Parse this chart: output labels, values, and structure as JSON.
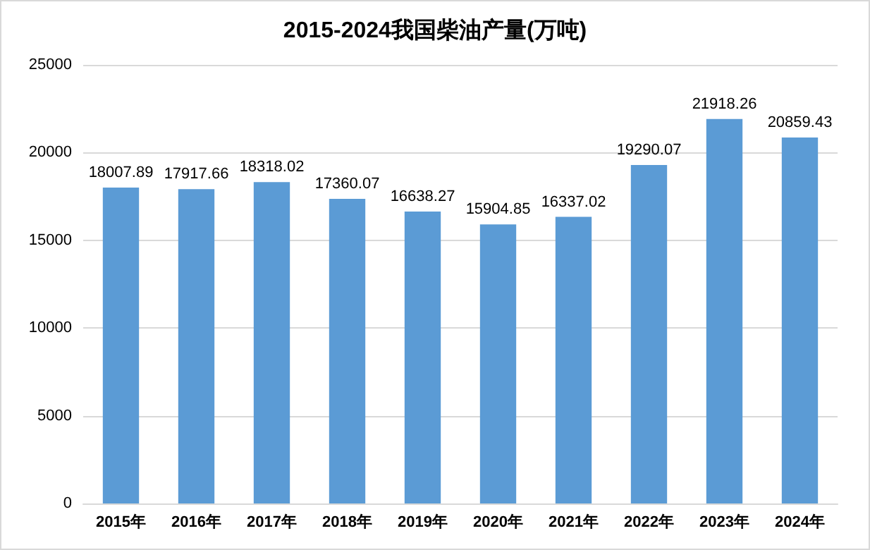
{
  "chart_data": {
    "type": "bar",
    "title": "2015-2024我国柴油产量(万吨)",
    "categories": [
      "2015年",
      "2016年",
      "2017年",
      "2018年",
      "2019年",
      "2020年",
      "2021年",
      "2022年",
      "2023年",
      "2024年"
    ],
    "values": [
      18007.89,
      17917.66,
      18318.02,
      17360.07,
      16638.27,
      15904.85,
      16337.02,
      19290.07,
      21918.26,
      20859.43
    ],
    "color": "#5b9bd5",
    "ylim": [
      0,
      25000
    ],
    "yticks": [
      0,
      5000,
      10000,
      15000,
      20000,
      25000
    ],
    "grid": "y",
    "data_labels": true
  }
}
